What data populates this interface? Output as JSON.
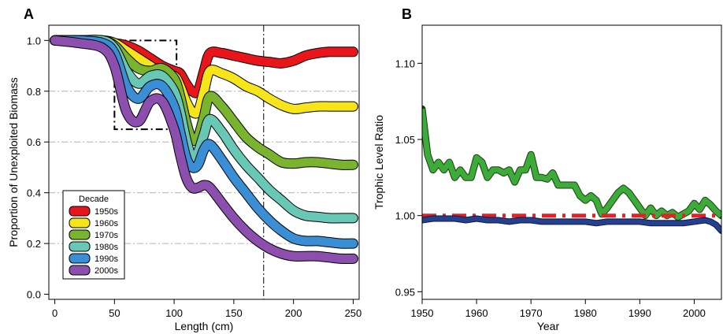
{
  "chart_data": [
    {
      "type": "line",
      "panel_label": "A",
      "xlabel": "Length (cm)",
      "ylabel": "Proportion of Unexploited Biomass",
      "xlim": [
        -5,
        255
      ],
      "ylim": [
        -0.02,
        1.06
      ],
      "xticks": [
        "0",
        "50",
        "100",
        "150",
        "200",
        "250"
      ],
      "xtick_values": [
        0,
        50,
        100,
        150,
        200,
        250
      ],
      "yticks": [
        "0.0",
        "0.2",
        "0.4",
        "0.6",
        "0.8",
        "1.0"
      ],
      "ytick_values": [
        0.0,
        0.2,
        0.4,
        0.6,
        0.8,
        1.0
      ],
      "grid": "horizontal dash-dot",
      "vline_x": 175,
      "box": {
        "x0": 50,
        "x1": 102,
        "y0": 0.65,
        "y1": 1.0
      },
      "legend": {
        "title": "Decade",
        "position": "bottom-left"
      },
      "series": [
        {
          "name": "1950s",
          "color": "#e8151b",
          "x": [
            0,
            20,
            40,
            50,
            60,
            70,
            80,
            90,
            100,
            105,
            110,
            115,
            120,
            125,
            130,
            140,
            150,
            160,
            170,
            180,
            190,
            200,
            210,
            220,
            230,
            240,
            250
          ],
          "y": [
            1.0,
            1.0,
            1.0,
            0.99,
            0.98,
            0.96,
            0.93,
            0.9,
            0.88,
            0.87,
            0.83,
            0.8,
            0.8,
            0.88,
            0.95,
            0.95,
            0.94,
            0.93,
            0.92,
            0.915,
            0.91,
            0.92,
            0.94,
            0.95,
            0.955,
            0.955,
            0.955
          ]
        },
        {
          "name": "1960s",
          "color": "#f7e51b",
          "x": [
            0,
            20,
            40,
            50,
            60,
            70,
            80,
            90,
            100,
            105,
            110,
            115,
            120,
            125,
            130,
            140,
            150,
            160,
            170,
            180,
            190,
            200,
            210,
            220,
            230,
            240,
            250
          ],
          "y": [
            1.0,
            1.0,
            1.0,
            0.99,
            0.96,
            0.93,
            0.9,
            0.87,
            0.86,
            0.82,
            0.76,
            0.72,
            0.72,
            0.8,
            0.88,
            0.87,
            0.85,
            0.82,
            0.8,
            0.77,
            0.745,
            0.73,
            0.735,
            0.74,
            0.74,
            0.74,
            0.74
          ]
        },
        {
          "name": "1970s",
          "color": "#7ab42f",
          "x": [
            0,
            20,
            40,
            50,
            60,
            70,
            80,
            90,
            100,
            105,
            110,
            115,
            120,
            125,
            130,
            140,
            150,
            160,
            170,
            180,
            190,
            200,
            210,
            220,
            230,
            240,
            250
          ],
          "y": [
            1.0,
            1.0,
            1.0,
            0.98,
            0.93,
            0.89,
            0.88,
            0.89,
            0.85,
            0.78,
            0.68,
            0.61,
            0.62,
            0.7,
            0.78,
            0.74,
            0.68,
            0.62,
            0.58,
            0.55,
            0.52,
            0.515,
            0.52,
            0.52,
            0.515,
            0.51,
            0.51
          ]
        },
        {
          "name": "1980s",
          "color": "#68c7b5",
          "x": [
            0,
            20,
            40,
            50,
            60,
            70,
            80,
            90,
            100,
            105,
            110,
            115,
            120,
            125,
            130,
            140,
            150,
            160,
            170,
            180,
            190,
            200,
            210,
            220,
            230,
            240,
            250
          ],
          "y": [
            1.0,
            1.0,
            1.0,
            0.97,
            0.88,
            0.83,
            0.86,
            0.86,
            0.8,
            0.72,
            0.61,
            0.54,
            0.56,
            0.63,
            0.69,
            0.64,
            0.57,
            0.51,
            0.46,
            0.41,
            0.37,
            0.33,
            0.31,
            0.305,
            0.3,
            0.3,
            0.3
          ]
        },
        {
          "name": "1990s",
          "color": "#3a8ed6",
          "x": [
            0,
            20,
            40,
            50,
            60,
            70,
            80,
            90,
            100,
            105,
            110,
            115,
            120,
            125,
            130,
            140,
            150,
            160,
            170,
            180,
            190,
            200,
            210,
            220,
            230,
            240,
            250
          ],
          "y": [
            1.0,
            1.0,
            0.99,
            0.95,
            0.82,
            0.77,
            0.82,
            0.82,
            0.74,
            0.64,
            0.54,
            0.5,
            0.51,
            0.57,
            0.59,
            0.53,
            0.46,
            0.4,
            0.34,
            0.29,
            0.25,
            0.22,
            0.21,
            0.21,
            0.205,
            0.2,
            0.2
          ]
        },
        {
          "name": "2000s",
          "color": "#8d4fae",
          "x": [
            0,
            20,
            40,
            50,
            60,
            70,
            80,
            90,
            100,
            105,
            110,
            115,
            120,
            125,
            130,
            140,
            150,
            160,
            170,
            180,
            190,
            200,
            210,
            220,
            230,
            240,
            250
          ],
          "y": [
            1.0,
            0.99,
            0.97,
            0.9,
            0.72,
            0.68,
            0.76,
            0.76,
            0.65,
            0.55,
            0.46,
            0.42,
            0.42,
            0.43,
            0.42,
            0.36,
            0.3,
            0.25,
            0.21,
            0.18,
            0.16,
            0.15,
            0.15,
            0.15,
            0.145,
            0.14,
            0.14
          ]
        }
      ]
    },
    {
      "type": "line",
      "panel_label": "B",
      "xlabel": "Year",
      "ylabel": "Trophic Level Ratio",
      "xlim": [
        1950,
        2005
      ],
      "ylim": [
        0.945,
        1.125
      ],
      "xticks": [
        "1950",
        "1960",
        "1970",
        "1980",
        "1990",
        "2000"
      ],
      "xtick_values": [
        1950,
        1960,
        1970,
        1980,
        1990,
        2000
      ],
      "yticks": [
        "0.95",
        "1.00",
        "1.05",
        "1.10"
      ],
      "ytick_values": [
        0.95,
        1.0,
        1.05,
        1.1
      ],
      "series": [
        {
          "color": "#3dab3a",
          "x": [
            1950,
            1951,
            1952,
            1953,
            1954,
            1955,
            1956,
            1957,
            1958,
            1959,
            1960,
            1961,
            1962,
            1963,
            1964,
            1965,
            1966,
            1967,
            1968,
            1969,
            1970,
            1971,
            1972,
            1973,
            1974,
            1975,
            1976,
            1977,
            1978,
            1979,
            1980,
            1981,
            1982,
            1983,
            1984,
            1985,
            1986,
            1987,
            1988,
            1989,
            1990,
            1991,
            1992,
            1993,
            1994,
            1995,
            1996,
            1997,
            1998,
            1999,
            2000,
            2001,
            2002,
            2003,
            2004,
            2005
          ],
          "y": [
            1.07,
            1.04,
            1.03,
            1.035,
            1.03,
            1.035,
            1.025,
            1.03,
            1.025,
            1.025,
            1.038,
            1.035,
            1.025,
            1.03,
            1.03,
            1.028,
            1.03,
            1.022,
            1.03,
            1.03,
            1.04,
            1.025,
            1.025,
            1.024,
            1.028,
            1.02,
            1.02,
            1.02,
            1.02,
            1.013,
            1.01,
            1.013,
            1.01,
            1.001,
            1.005,
            1.01,
            1.015,
            1.018,
            1.015,
            1.01,
            1.005,
            1.0,
            1.005,
            1.0,
            1.003,
            1.0,
            1.002,
            0.999,
            1.001,
            1.003,
            1.008,
            1.004,
            1.01,
            1.007,
            1.003,
            1.0
          ]
        },
        {
          "color": "#e32126",
          "x": [
            1950,
            1955,
            1960,
            1965,
            1970,
            1975,
            1980,
            1985,
            1990,
            1995,
            2000,
            2005
          ],
          "y": [
            1.0,
            1.0,
            1.0,
            1.0,
            1.0,
            1.0,
            1.0,
            1.0,
            1.0,
            1.0,
            1.0,
            1.0
          ]
        },
        {
          "color": "#25408f",
          "x": [
            1950,
            1952,
            1954,
            1956,
            1958,
            1960,
            1962,
            1964,
            1966,
            1968,
            1970,
            1972,
            1974,
            1976,
            1978,
            1980,
            1982,
            1984,
            1986,
            1988,
            1990,
            1992,
            1994,
            1996,
            1998,
            2000,
            2002,
            2003,
            2004,
            2005
          ],
          "y": [
            0.997,
            0.998,
            0.998,
            0.998,
            0.997,
            0.998,
            0.997,
            0.997,
            0.996,
            0.997,
            0.997,
            0.996,
            0.996,
            0.996,
            0.996,
            0.996,
            0.995,
            0.996,
            0.996,
            0.996,
            0.996,
            0.995,
            0.995,
            0.995,
            0.995,
            0.996,
            0.997,
            0.996,
            0.994,
            0.99
          ]
        }
      ]
    }
  ]
}
